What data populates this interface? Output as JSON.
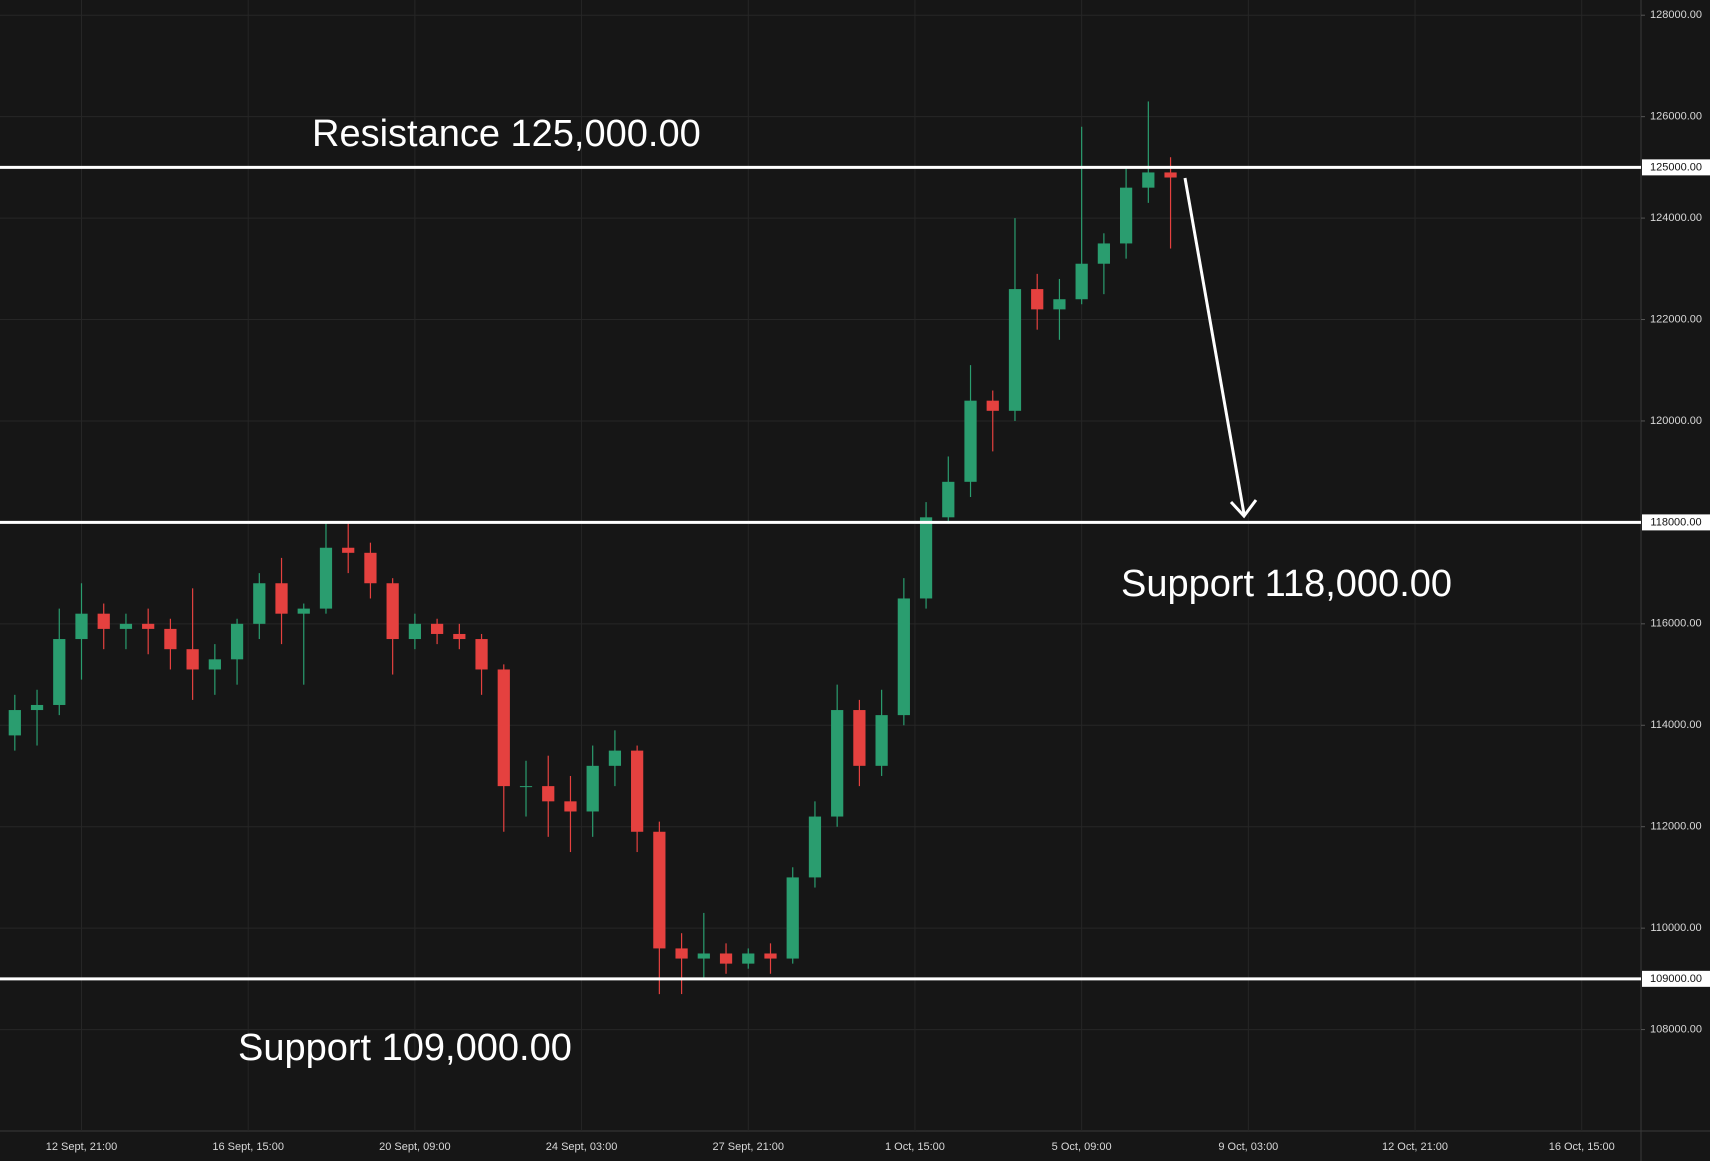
{
  "chart_data": {
    "type": "candlestick",
    "x": [
      "11 Sept, 09:00",
      "11 Sept, 21:00",
      "12 Sept, 09:00",
      "12 Sept, 21:00",
      "13 Sept, 09:00",
      "13 Sept, 21:00",
      "14 Sept, 09:00",
      "14 Sept, 21:00",
      "15 Sept, 09:00",
      "15 Sept, 21:00",
      "16 Sept, 09:00",
      "16 Sept, 21:00",
      "17 Sept, 09:00",
      "17 Sept, 21:00",
      "18 Sept, 09:00",
      "18 Sept, 21:00",
      "19 Sept, 09:00",
      "19 Sept, 21:00",
      "20 Sept, 09:00",
      "20 Sept, 21:00",
      "21 Sept, 09:00",
      "21 Sept, 21:00",
      "22 Sept, 09:00",
      "22 Sept, 21:00",
      "23 Sept, 09:00",
      "23 Sept, 21:00",
      "24 Sept, 09:00",
      "24 Sept, 21:00",
      "25 Sept, 09:00",
      "25 Sept, 21:00",
      "26 Sept, 09:00",
      "26 Sept, 21:00",
      "27 Sept, 09:00",
      "27 Sept, 21:00",
      "28 Sept, 09:00",
      "28 Sept, 21:00",
      "29 Sept, 09:00",
      "29 Sept, 21:00",
      "30 Sept, 09:00",
      "30 Sept, 21:00",
      "1 Oct, 09:00",
      "1 Oct, 21:00",
      "2 Oct, 09:00",
      "2 Oct, 21:00",
      "3 Oct, 09:00",
      "3 Oct, 21:00",
      "4 Oct, 09:00",
      "4 Oct, 21:00",
      "5 Oct, 09:00",
      "5 Oct, 21:00",
      "6 Oct, 09:00",
      "6 Oct, 21:00",
      "7 Oct, 09:00"
    ],
    "open": [
      113800,
      114300,
      114400,
      115700,
      116200,
      115900,
      116000,
      115900,
      115500,
      115100,
      115300,
      116000,
      116800,
      116200,
      116300,
      117500,
      117400,
      116800,
      115700,
      116000,
      115800,
      115700,
      115100,
      112800,
      112800,
      112500,
      112300,
      113200,
      113500,
      111900,
      109600,
      109400,
      109500,
      109300,
      109500,
      109400,
      111000,
      112200,
      114300,
      113200,
      114200,
      116500,
      118100,
      118800,
      120400,
      120200,
      122600,
      122200,
      122400,
      123100,
      123500,
      124600,
      124900
    ],
    "high": [
      114600,
      114700,
      116300,
      116800,
      116400,
      116200,
      116300,
      116100,
      116700,
      115600,
      116100,
      117000,
      117300,
      116400,
      118000,
      118000,
      117600,
      116900,
      116200,
      116100,
      116000,
      115800,
      115200,
      113300,
      113400,
      113000,
      113600,
      113900,
      113600,
      112100,
      109900,
      110300,
      109700,
      109600,
      109700,
      111200,
      112500,
      114800,
      114500,
      114700,
      116900,
      118400,
      119300,
      121100,
      120600,
      124000,
      122900,
      122800,
      125800,
      123700,
      125000,
      126300,
      125200
    ],
    "low": [
      113500,
      113600,
      114200,
      114900,
      115500,
      115500,
      115400,
      115100,
      114500,
      114600,
      114800,
      115700,
      115600,
      114800,
      116200,
      117000,
      116500,
      115000,
      115500,
      115600,
      115500,
      114600,
      111900,
      112200,
      111800,
      111500,
      111800,
      112800,
      111500,
      108700,
      108700,
      109000,
      109100,
      109200,
      109100,
      109300,
      110800,
      112000,
      112800,
      113000,
      114000,
      116300,
      118000,
      118500,
      119400,
      120000,
      121800,
      121600,
      122300,
      122500,
      123200,
      124300,
      123400
    ],
    "close": [
      114300,
      114400,
      115700,
      116200,
      115900,
      116000,
      115900,
      115500,
      115100,
      115300,
      116000,
      116800,
      116200,
      116300,
      117500,
      117400,
      116800,
      115700,
      116000,
      115800,
      115700,
      115100,
      112800,
      112800,
      112500,
      112300,
      113200,
      113500,
      111900,
      109600,
      109400,
      109500,
      109300,
      109500,
      109400,
      111000,
      112200,
      114300,
      113200,
      114200,
      116500,
      118100,
      118800,
      120400,
      120200,
      122600,
      122200,
      122400,
      123100,
      123500,
      124600,
      124900,
      124800
    ],
    "up_color": "#2a9d6f",
    "down_color": "#e5413f",
    "xlim": [
      "11 Sept, 01:00",
      "17 Oct, 23:00"
    ],
    "xticks": [
      "12 Sept, 21:00",
      "16 Sept, 15:00",
      "20 Sept, 09:00",
      "24 Sept, 03:00",
      "27 Sept, 21:00",
      "1 Oct, 15:00",
      "5 Oct, 09:00",
      "9 Oct, 03:00",
      "12 Oct, 21:00",
      "16 Oct, 15:00"
    ],
    "ylim": [
      106000,
      128300
    ],
    "yticks": [
      {
        "value": 108000,
        "label": "108000.00"
      },
      {
        "value": 110000,
        "label": "110000.00"
      },
      {
        "value": 112000,
        "label": "112000.00"
      },
      {
        "value": 114000,
        "label": "114000.00"
      },
      {
        "value": 116000,
        "label": "116000.00"
      },
      {
        "value": 120000,
        "label": "120000.00"
      },
      {
        "value": 122000,
        "label": "122000.00"
      },
      {
        "value": 124000,
        "label": "124000.00"
      },
      {
        "value": 126000,
        "label": "126000.00"
      },
      {
        "value": 128000,
        "label": "128000.00"
      }
    ],
    "grid": true,
    "levels": [
      {
        "value": 125000,
        "label": "125000.00",
        "annotation": "Resistance 125,000.00"
      },
      {
        "value": 118000,
        "label": "118000.00",
        "annotation": "Support 118,000.00"
      },
      {
        "value": 109000,
        "label": "109000.00",
        "annotation": "Support 109,000.00"
      }
    ]
  }
}
